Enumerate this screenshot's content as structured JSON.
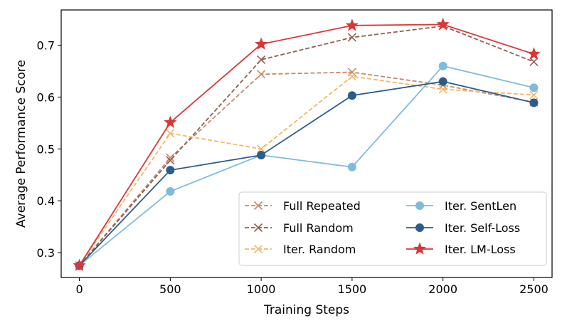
{
  "chart_data": {
    "type": "line",
    "title": "",
    "xlabel": "Training Steps",
    "ylabel": "Average Performance Score",
    "x": [
      0,
      500,
      1000,
      1500,
      2000,
      2500
    ],
    "xticks": [
      0,
      500,
      1000,
      1500,
      2000,
      2500
    ],
    "xtick_labels": [
      "0",
      "500",
      "1000",
      "1500",
      "2000",
      "2500"
    ],
    "yticks": [
      0.3,
      0.4,
      0.5,
      0.6,
      0.7
    ],
    "ytick_labels": [
      "0.3",
      "0.4",
      "0.5",
      "0.6",
      "0.7"
    ],
    "xlim": [
      -100,
      2600
    ],
    "ylim": [
      0.252,
      0.768
    ],
    "grid": false,
    "legend": "lower-right",
    "series": [
      {
        "name": "Full Repeated",
        "values": [
          0.275,
          0.483,
          0.644,
          0.648,
          0.623,
          0.59
        ],
        "color": "#c8886a",
        "style": "dashed",
        "marker": "x"
      },
      {
        "name": "Full Random",
        "values": [
          0.275,
          0.478,
          0.672,
          0.715,
          0.737,
          0.668
        ],
        "color": "#8c6050",
        "style": "dashed",
        "marker": "x"
      },
      {
        "name": "Iter. Random",
        "values": [
          0.275,
          0.53,
          0.5,
          0.64,
          0.615,
          0.604
        ],
        "color": "#f2b765",
        "style": "dashed",
        "marker": "x"
      },
      {
        "name": "Iter. SentLen",
        "values": [
          0.275,
          0.418,
          0.488,
          0.465,
          0.66,
          0.618
        ],
        "color": "#7ebcdb",
        "style": "solid",
        "marker": "circle"
      },
      {
        "name": "Iter. Self-Loss",
        "values": [
          0.275,
          0.459,
          0.488,
          0.603,
          0.63,
          0.589
        ],
        "color": "#2c5d8a",
        "style": "solid",
        "marker": "circle"
      },
      {
        "name": "Iter. LM-Loss",
        "values": [
          0.275,
          0.551,
          0.702,
          0.738,
          0.74,
          0.683
        ],
        "color": "#d93737",
        "style": "solid",
        "marker": "star"
      }
    ]
  }
}
